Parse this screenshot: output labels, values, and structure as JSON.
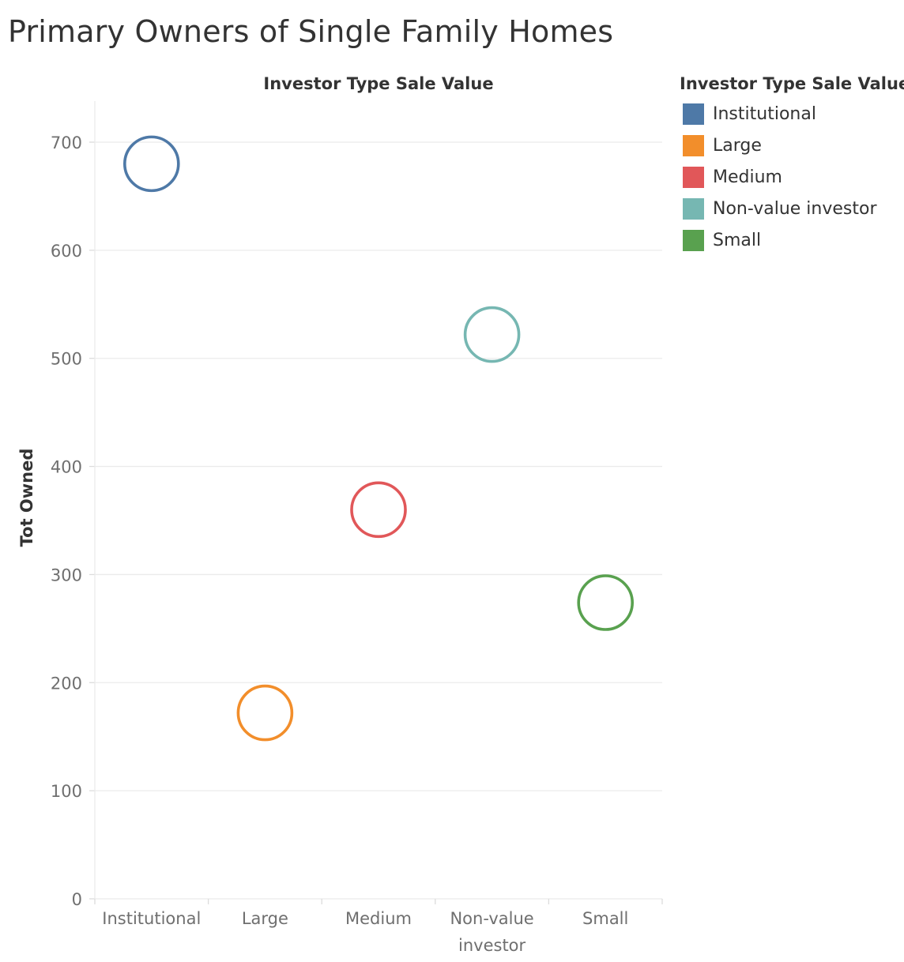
{
  "chart_data": {
    "type": "scatter",
    "title": "Primary Owners of Single Family Homes",
    "top_axis_title": "Investor Type Sale Value",
    "ylabel": "Tot Owned",
    "ylim": [
      0,
      700
    ],
    "yticks": [
      0,
      100,
      200,
      300,
      400,
      500,
      600,
      700
    ],
    "categories": [
      "Institutional",
      "Large",
      "Medium",
      "Non-value investor",
      "Small"
    ],
    "category_tick_lines": [
      [
        "Institutional"
      ],
      [
        "Large"
      ],
      [
        "Medium"
      ],
      [
        "Non-value",
        "investor"
      ],
      [
        "Small"
      ]
    ],
    "series": [
      {
        "name": "Institutional",
        "category": "Institutional",
        "value": 680,
        "color": "#4e79a7"
      },
      {
        "name": "Large",
        "category": "Large",
        "value": 172,
        "color": "#f28e2b"
      },
      {
        "name": "Medium",
        "category": "Medium",
        "value": 360,
        "color": "#e15759"
      },
      {
        "name": "Non-value investor",
        "category": "Non-value investor",
        "value": 522,
        "color": "#76b7b2"
      },
      {
        "name": "Small",
        "category": "Small",
        "value": 274,
        "color": "#59a14f"
      }
    ],
    "marker": "open-circle",
    "grid": "horizontal",
    "legend": {
      "title": "Investor Type Sale Value",
      "position": "right"
    }
  }
}
